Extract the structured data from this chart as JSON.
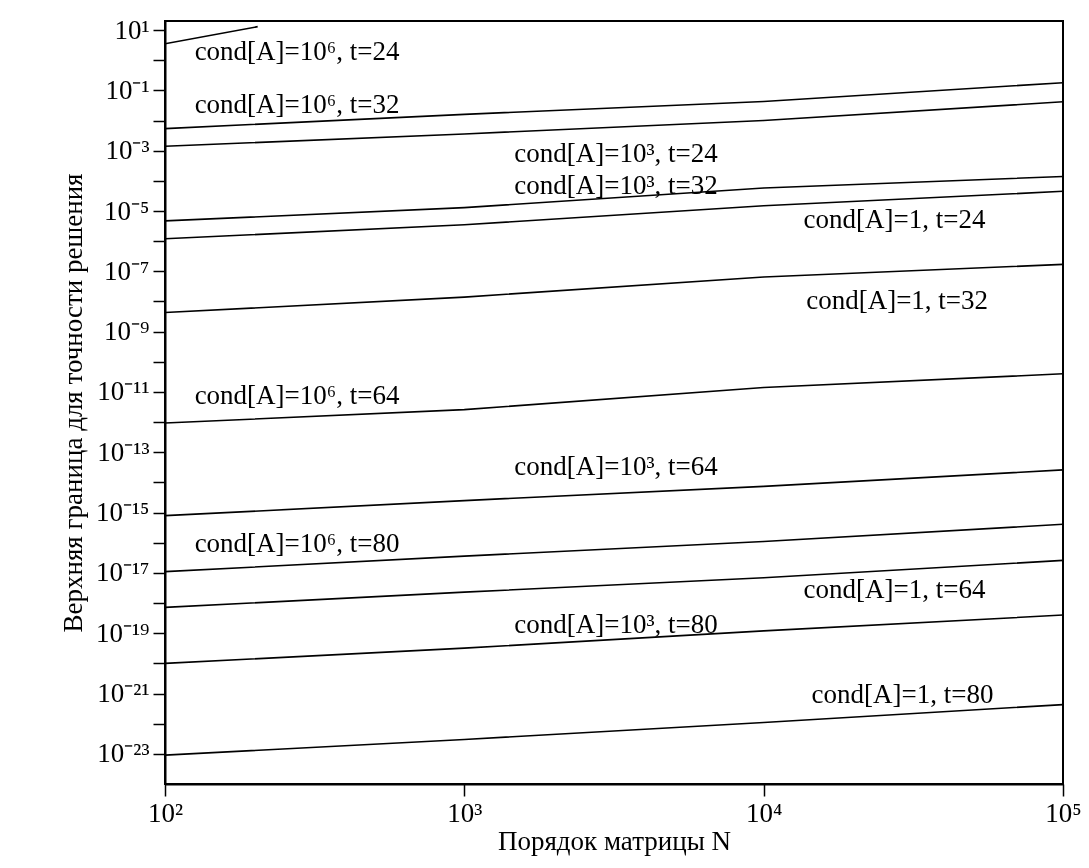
{
  "chart_data": {
    "type": "line",
    "xlabel": "Порядок матрицы    N",
    "ylabel": "Верхняя граница для точности решения",
    "log": "xy",
    "x": [
      100,
      1000,
      10000,
      100000
    ],
    "series": [
      {
        "name": "cond[A]=10⁶, t=24",
        "color": "#000000",
        "x": [
          100,
          204
        ],
        "values": [
          3.5,
          13
        ]
      },
      {
        "name": "cond[A]=10⁶, t=32",
        "color": "#000000",
        "values": [
          0.0054,
          0.016,
          0.043,
          0.18
        ]
      },
      {
        "name": "cond[A]=10³, t=24",
        "color": "#000000",
        "values": [
          0.0014,
          0.0036,
          0.01,
          0.042
        ]
      },
      {
        "name": "cond[A]=10³, t=32",
        "color": "#000000",
        "values": [
          4.7e-06,
          1.3e-05,
          5.8e-05,
          0.00014
        ]
      },
      {
        "name": "cond[A]=1, t=24",
        "color": "#000000",
        "values": [
          1.2e-06,
          3.5e-06,
          1.5e-05,
          4.5e-05
        ]
      },
      {
        "name": "cond[A]=1, t=32",
        "color": "#000000",
        "values": [
          4.3e-09,
          1.4e-08,
          6.5e-08,
          1.7e-07
        ]
      },
      {
        "name": "cond[A]=10⁶, t=64",
        "color": "#000000",
        "values": [
          9.3e-13,
          2.6e-12,
          1.4e-11,
          4e-11
        ]
      },
      {
        "name": "cond[A]=10³, t=64",
        "color": "#000000",
        "values": [
          7.9e-16,
          2.5e-15,
          7.4e-15,
          2.6e-14
        ]
      },
      {
        "name": "cond[A]=10⁶, t=80",
        "color": "#000000",
        "values": [
          1.1e-17,
          3.6e-17,
          1.1e-16,
          4.1e-16
        ]
      },
      {
        "name": "cond[A]=1, t=64",
        "color": "#000000",
        "values": [
          7.2e-19,
          2.3e-18,
          6.9e-18,
          2.6e-17
        ]
      },
      {
        "name": "cond[A]=10³, t=80",
        "color": "#000000",
        "values": [
          1e-20,
          3.2e-20,
          1.2e-19,
          4e-19
        ]
      },
      {
        "name": "cond[A]=1, t=80",
        "color": "#000000",
        "values": [
          9.1e-24,
          3e-23,
          1.1e-22,
          4.3e-22
        ]
      }
    ],
    "xlim": [
      100,
      100000
    ],
    "ylim": [
      1e-24,
      20
    ],
    "xticks": [
      {
        "value": 100,
        "label": "10²"
      },
      {
        "value": 1000,
        "label": "10³"
      },
      {
        "value": 10000,
        "label": "10⁴"
      },
      {
        "value": 100000,
        "label": "10⁵"
      }
    ],
    "yticks": [
      {
        "value": 10,
        "label": "10¹"
      },
      {
        "value": 1,
        "label": null
      },
      {
        "value": 0.1,
        "label": "10⁻¹"
      },
      {
        "value": 0.01,
        "label": null
      },
      {
        "value": 0.001,
        "label": "10⁻³"
      },
      {
        "value": 0.0001,
        "label": null
      },
      {
        "value": 1e-05,
        "label": "10⁻⁵"
      },
      {
        "value": 1e-06,
        "label": null
      },
      {
        "value": 1e-07,
        "label": "10⁻⁷"
      },
      {
        "value": 1e-08,
        "label": null
      },
      {
        "value": 1e-09,
        "label": "10⁻⁹"
      },
      {
        "value": 1e-10,
        "label": null
      },
      {
        "value": 1e-11,
        "label": "10⁻¹¹"
      },
      {
        "value": 1e-12,
        "label": null
      },
      {
        "value": 1e-13,
        "label": "10⁻¹³"
      },
      {
        "value": 1e-14,
        "label": null
      },
      {
        "value": 1e-15,
        "label": "10⁻¹⁵"
      },
      {
        "value": 1e-16,
        "label": null
      },
      {
        "value": 1e-17,
        "label": "10⁻¹⁷"
      },
      {
        "value": 1e-18,
        "label": null
      },
      {
        "value": 1e-19,
        "label": "10⁻¹⁹"
      },
      {
        "value": 1e-20,
        "label": null
      },
      {
        "value": 1e-21,
        "label": "10⁻²¹"
      },
      {
        "value": 1e-22,
        "label": null
      },
      {
        "value": 1e-23,
        "label": "10⁻²³"
      }
    ],
    "legend": false,
    "grid": false
  }
}
